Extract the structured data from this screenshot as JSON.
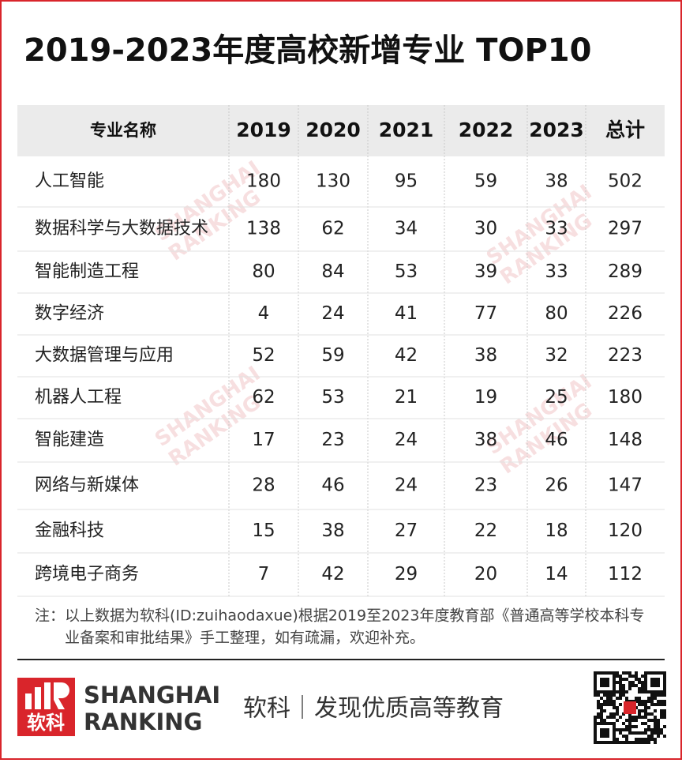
{
  "header": {
    "title": "2019-2023年度高校新增专业 TOP10"
  },
  "table": {
    "columns": [
      "专业名称",
      "2019",
      "2020",
      "2021",
      "2022",
      "2023",
      "总计"
    ],
    "rows": [
      [
        "人工智能",
        180,
        130,
        95,
        59,
        38,
        502
      ],
      [
        "数据科学与大数据技术",
        138,
        62,
        34,
        30,
        33,
        297
      ],
      [
        "智能制造工程",
        80,
        84,
        53,
        39,
        33,
        289
      ],
      [
        "数字经济",
        4,
        24,
        41,
        77,
        80,
        226
      ],
      [
        "大数据管理与应用",
        52,
        59,
        42,
        38,
        32,
        223
      ],
      [
        "机器人工程",
        62,
        53,
        21,
        19,
        25,
        180
      ],
      [
        "智能建造",
        17,
        23,
        24,
        38,
        46,
        148
      ],
      [
        "网络与新媒体",
        28,
        46,
        24,
        23,
        26,
        147
      ],
      [
        "金融科技",
        15,
        38,
        27,
        22,
        18,
        120
      ],
      [
        "跨境电子商务",
        7,
        42,
        29,
        20,
        14,
        112
      ]
    ]
  },
  "note": [
    "注：以上数据为软科(ID:zuihaodaxue)根据2019至2023年度教育部《普通高等学校本科专",
    "业备案和审批结果》手工整理，如有疏漏，欢迎补充。"
  ],
  "watermark": [
    "SHANGHAI",
    "RANKING"
  ],
  "footer": {
    "logo_text": "软科",
    "brand": [
      "SHANGHAI",
      "RANKING"
    ],
    "slogan": "软科｜发现优质高等教育"
  }
}
